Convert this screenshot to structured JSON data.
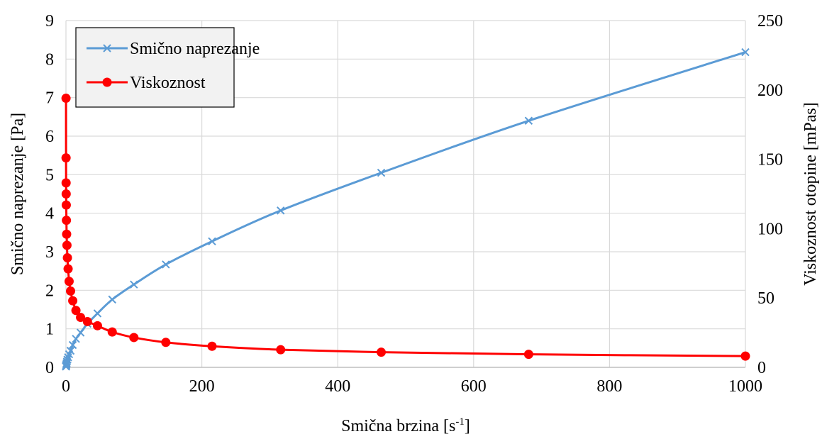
{
  "chart_data": {
    "type": "line",
    "title": "",
    "xlabel": "Smična brzina [s",
    "xlabel_sup": "-1",
    "xlabel_end": "]",
    "ylabel_left": "Smično naprezanje [Pa]",
    "ylabel_right": "Viskoznost otopine [mPas]",
    "xlim": [
      0,
      1000
    ],
    "ylim_left": [
      0,
      9
    ],
    "ylim_right": [
      0,
      250
    ],
    "x_ticks": [
      "0",
      "200",
      "400",
      "600",
      "800",
      "1000"
    ],
    "y_left_ticks": [
      "0",
      "1",
      "2",
      "3",
      "4",
      "5",
      "6",
      "7",
      "8",
      "9"
    ],
    "y_right_ticks": [
      "0",
      "50",
      "100",
      "150",
      "200",
      "250"
    ],
    "grid": true,
    "legend_position": "top-left",
    "series": [
      {
        "name": "Smično naprezanje",
        "axis": "left",
        "color": "#5B9BD5",
        "marker": "x",
        "x": [
          0.1,
          0.147,
          0.215,
          0.316,
          0.464,
          0.681,
          1,
          1.47,
          2.15,
          3.16,
          4.64,
          6.81,
          10,
          14.7,
          21.5,
          31.6,
          46.4,
          68.1,
          100,
          147,
          215,
          316,
          464,
          681,
          1000
        ],
        "y": [
          0.019,
          0.026,
          0.036,
          0.045,
          0.063,
          0.085,
          0.11,
          0.15,
          0.2,
          0.26,
          0.34,
          0.43,
          0.58,
          0.74,
          0.9,
          1.13,
          1.4,
          1.76,
          2.15,
          2.67,
          3.27,
          4.07,
          5.05,
          6.4,
          8.18
        ]
      },
      {
        "name": "Viskoznost",
        "axis": "right",
        "color": "#FF0000",
        "marker": "circle",
        "x": [
          0.1,
          0.147,
          0.215,
          0.316,
          0.464,
          0.681,
          1,
          1.47,
          2.15,
          3.16,
          4.64,
          6.81,
          10,
          14.7,
          21.5,
          31.6,
          46.4,
          68.1,
          100,
          147,
          215,
          316,
          464,
          681,
          1000
        ],
        "y": [
          194,
          151,
          133,
          125,
          117,
          106,
          96,
          88,
          79,
          71,
          62,
          55,
          48,
          41,
          36,
          33,
          30,
          25.5,
          21.5,
          18,
          15.2,
          12.7,
          10.9,
          9.4,
          8.1
        ]
      }
    ]
  }
}
